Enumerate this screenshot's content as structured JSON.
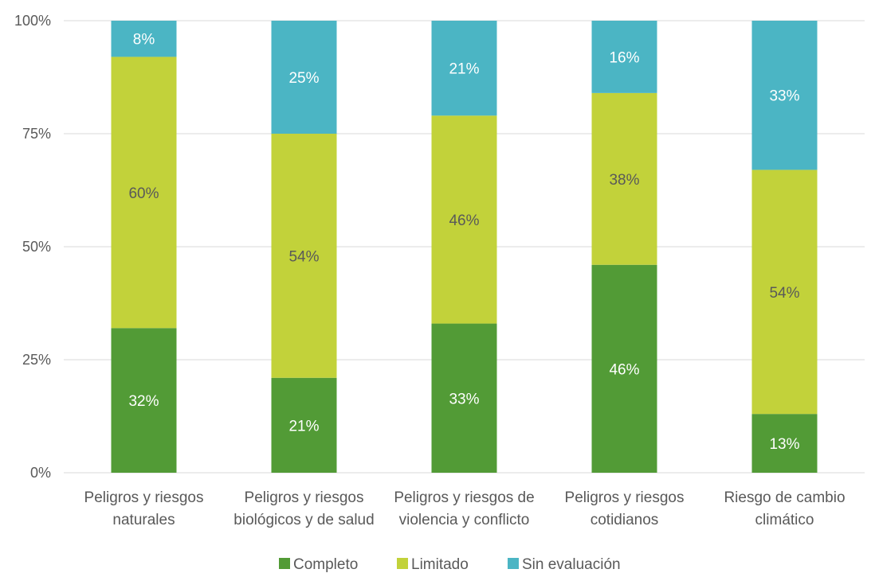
{
  "chart_data": {
    "type": "bar",
    "stacked": true,
    "percent": true,
    "categories": [
      [
        "Peligros y riesgos",
        "naturales"
      ],
      [
        "Peligros y riesgos",
        "biológicos y de salud"
      ],
      [
        "Peligros y riesgos de",
        "violencia y conflicto"
      ],
      [
        "Peligros y riesgos",
        "cotidianos"
      ],
      [
        "Riesgo de cambio",
        "climático"
      ]
    ],
    "series": [
      {
        "name": "Completo",
        "color": "#529b36",
        "label_color": "#ffffff",
        "values": [
          32,
          21,
          33,
          46,
          13
        ],
        "labels": [
          "32%",
          "21%",
          "33%",
          "46%",
          "13%"
        ]
      },
      {
        "name": "Limitado",
        "color": "#c2d23a",
        "label_color": "#595959",
        "values": [
          60,
          54,
          46,
          38,
          54
        ],
        "labels": [
          "60%",
          "54%",
          "46%",
          "38%",
          "54%"
        ]
      },
      {
        "name": "Sin evaluación",
        "color": "#4bb5c4",
        "label_color": "#ffffff",
        "values": [
          8,
          25,
          21,
          16,
          33
        ],
        "labels": [
          "8%",
          "25%",
          "21%",
          "16%",
          "33%"
        ]
      }
    ],
    "ylim": [
      0,
      100
    ],
    "yticks": [
      0,
      25,
      50,
      75,
      100
    ],
    "ytick_labels": [
      "0%",
      "25%",
      "50%",
      "75%",
      "100%"
    ],
    "grid": true,
    "legend_position": "bottom",
    "title": "",
    "xlabel": "",
    "ylabel": ""
  }
}
